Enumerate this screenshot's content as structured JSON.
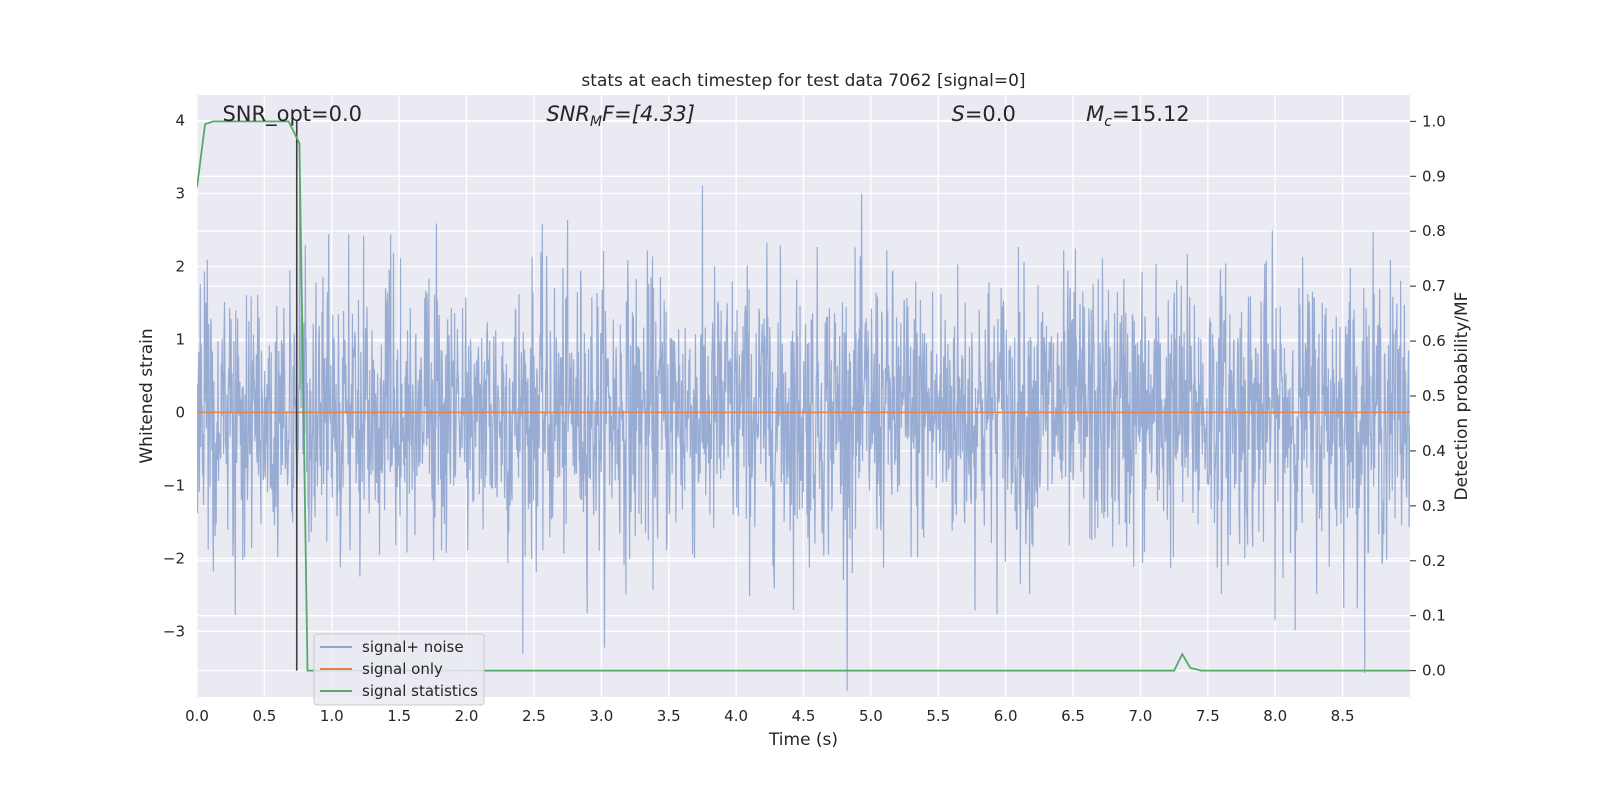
{
  "chart_data": {
    "type": "line",
    "title": "stats at each timestep for test data 7062 [signal=0]",
    "xlabel": "Time (s)",
    "ylabel": "Whitened strain",
    "y2label": "Detection probability/MF",
    "xlim": [
      0.0,
      9.0
    ],
    "ylim": [
      -3.9,
      4.35
    ],
    "y2lim": [
      -0.048,
      1.048
    ],
    "x_ticks": [
      "0.0",
      "0.5",
      "1.0",
      "1.5",
      "2.0",
      "2.5",
      "3.0",
      "3.5",
      "4.0",
      "4.5",
      "5.0",
      "5.5",
      "6.0",
      "6.5",
      "7.0",
      "7.5",
      "8.0",
      "8.5"
    ],
    "y_ticks": [
      "4",
      "3",
      "2",
      "1",
      "0",
      "−1",
      "−2",
      "−3"
    ],
    "y2_ticks": [
      "1.0",
      "0.9",
      "0.8",
      "0.7",
      "0.6",
      "0.5",
      "0.4",
      "0.3",
      "0.2",
      "0.1",
      "0.0"
    ],
    "grid": true,
    "legend_position": "lower-left",
    "annotations": {
      "snr_opt": "SNR_opt=0.0",
      "snr_mf_main": "SNR",
      "snr_mf_sub": "M",
      "snr_mf_rest": "F=[4.33]",
      "s_main": "S",
      "s_rest": "=0.0",
      "mc_main": "M",
      "mc_sub": "c",
      "mc_rest": "=15.12"
    },
    "series": [
      {
        "name": "signal+ noise",
        "color": "#8fa5cf",
        "note_visual": "dense whitened noise, mostly within ±2 with spikes to about ±3.7",
        "envelope_abs_max": 4.0
      },
      {
        "name": "signal only",
        "color": "#dd8452",
        "x": [
          0.0,
          9.0
        ],
        "y": [
          0.0,
          0.0
        ]
      },
      {
        "name": "signal statistics",
        "color": "#55a868",
        "axis": "right",
        "x": [
          0.0,
          0.06,
          0.12,
          0.3,
          0.5,
          0.68,
          0.73,
          0.76,
          0.82,
          1.0,
          3.0,
          5.0,
          7.0,
          7.25,
          7.31,
          7.37,
          7.45,
          8.0,
          9.0
        ],
        "y": [
          0.88,
          0.995,
          1.0,
          1.0,
          1.0,
          1.0,
          0.975,
          0.96,
          0.0,
          0.0,
          0.0,
          0.0,
          0.0,
          0.0,
          0.03,
          0.005,
          0.0,
          0.0,
          0.0
        ]
      }
    ],
    "vertical_marker": {
      "x": 0.74,
      "color": "#404040"
    }
  }
}
